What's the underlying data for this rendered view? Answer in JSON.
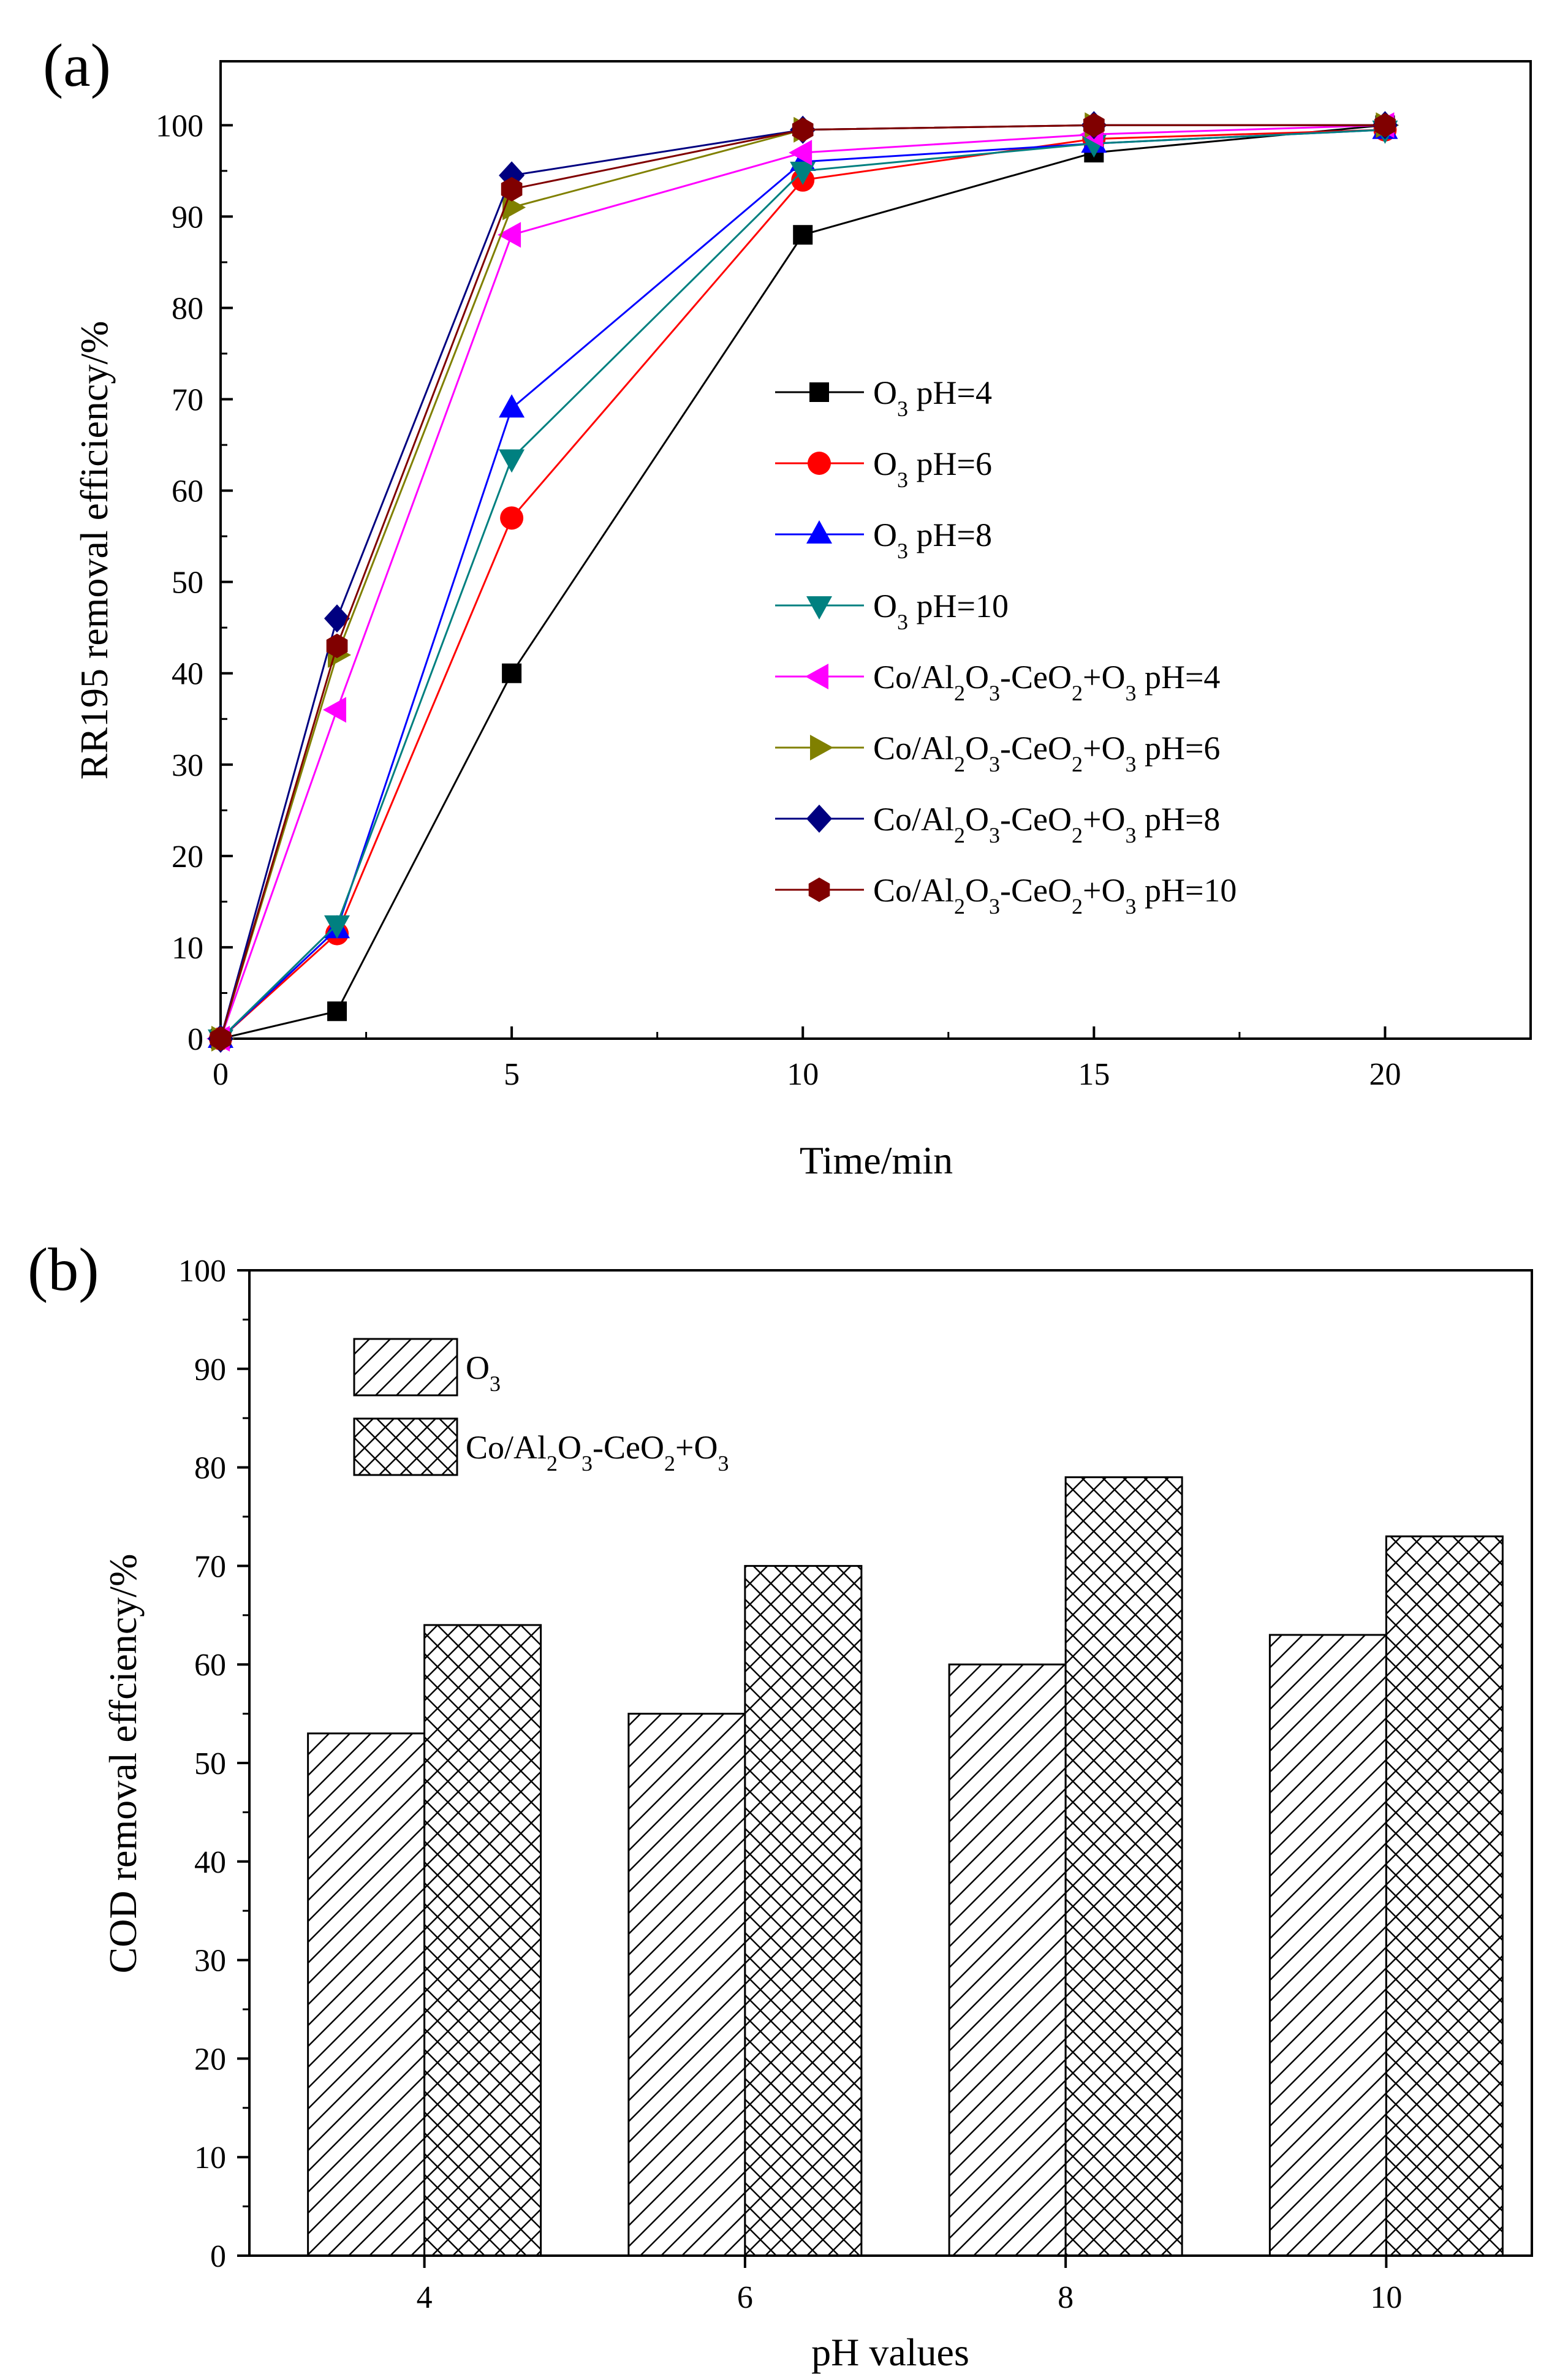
{
  "panel_a": {
    "label": "(a)",
    "legend": [
      {
        "prefix": "O",
        "sub1": "3",
        "mid": "",
        "sub2": "",
        "mid2": "",
        "sub3": "",
        "rest": " pH=4"
      },
      {
        "prefix": "O",
        "sub1": "3",
        "mid": "",
        "sub2": "",
        "mid2": "",
        "sub3": "",
        "rest": " pH=6"
      },
      {
        "prefix": "O",
        "sub1": "3",
        "mid": "",
        "sub2": "",
        "mid2": "",
        "sub3": "",
        "rest": " pH=8"
      },
      {
        "prefix": "O",
        "sub1": "3",
        "mid": "",
        "sub2": "",
        "mid2": "",
        "sub3": "",
        "rest": " pH=10"
      },
      {
        "prefix": "Co/Al",
        "sub1": "2",
        "mid": "O",
        "sub2": "3",
        "mid2": "-CeO",
        "sub3": "2",
        "mid3": "+O",
        "sub4": "3",
        "rest": " pH=4"
      },
      {
        "prefix": "Co/Al",
        "sub1": "2",
        "mid": "O",
        "sub2": "3",
        "mid2": "-CeO",
        "sub3": "2",
        "mid3": "+O",
        "sub4": "3",
        "rest": " pH=6"
      },
      {
        "prefix": "Co/Al",
        "sub1": "2",
        "mid": "O",
        "sub2": "3",
        "mid2": "-CeO",
        "sub3": "2",
        "mid3": "+O",
        "sub4": "3",
        "rest": " pH=8"
      },
      {
        "prefix": "Co/Al",
        "sub1": "2",
        "mid": "O",
        "sub2": "3",
        "mid2": "-CeO",
        "sub3": "2",
        "mid3": "+O",
        "sub4": "3",
        "rest": " pH=10"
      }
    ]
  },
  "panel_b": {
    "label": "(b)",
    "legend": [
      {
        "prefix": "O",
        "sub1": "3",
        "rest": ""
      },
      {
        "prefix": "Co/Al",
        "sub1": "2",
        "mid": "O",
        "sub2": "3",
        "mid2": "-CeO",
        "sub3": "2",
        "mid3": "+O",
        "sub4": "3",
        "rest": ""
      }
    ]
  },
  "chart_data": [
    {
      "type": "line",
      "xlabel": "Time/min",
      "ylabel": "RR195 removal efficiency/%",
      "xlim": [
        0,
        22.5
      ],
      "ylim": [
        0,
        107
      ],
      "xticks": [
        0,
        5,
        10,
        15,
        20
      ],
      "yticks": [
        0,
        10,
        20,
        30,
        40,
        50,
        60,
        70,
        80,
        90,
        100
      ],
      "x": [
        0,
        2,
        5,
        10,
        15,
        20
      ],
      "legend_position": "center-right",
      "series": [
        {
          "name": "O3 pH=4",
          "color": "#000000",
          "marker": "square",
          "values": [
            0,
            3,
            40,
            88,
            97,
            100
          ]
        },
        {
          "name": "O3 pH=6",
          "color": "#ff0000",
          "marker": "circle",
          "values": [
            0,
            11.5,
            57,
            94,
            98.5,
            99.5
          ]
        },
        {
          "name": "O3 pH=8",
          "color": "#0000ff",
          "marker": "triangle-up",
          "values": [
            0,
            12,
            69,
            96,
            98,
            99.5
          ]
        },
        {
          "name": "O3 pH=10",
          "color": "#008080",
          "marker": "triangle-down",
          "values": [
            0,
            12.5,
            63.5,
            95,
            98,
            99.5
          ]
        },
        {
          "name": "Co/Al2O3-CeO2+O3 pH=4",
          "color": "#ff00ff",
          "marker": "triangle-left",
          "values": [
            0,
            36,
            88,
            97,
            99,
            100
          ]
        },
        {
          "name": "Co/Al2O3-CeO2+O3 pH=6",
          "color": "#808000",
          "marker": "triangle-right",
          "values": [
            0,
            42,
            91,
            99.5,
            100,
            100
          ]
        },
        {
          "name": "Co/Al2O3-CeO2+O3 pH=8",
          "color": "#000080",
          "marker": "diamond",
          "values": [
            0,
            46,
            94.5,
            99.5,
            100,
            100
          ]
        },
        {
          "name": "Co/Al2O3-CeO2+O3 pH=10",
          "color": "#800000",
          "marker": "hexagon",
          "values": [
            0,
            43,
            93,
            99.5,
            100,
            100
          ]
        }
      ]
    },
    {
      "type": "bar",
      "xlabel": "pH values",
      "ylabel": "COD removal effciency/%",
      "ylim": [
        0,
        100
      ],
      "yticks": [
        0,
        10,
        20,
        30,
        40,
        50,
        60,
        70,
        80,
        90,
        100
      ],
      "categories": [
        "4",
        "6",
        "8",
        "10"
      ],
      "legend_position": "top-left",
      "series": [
        {
          "name": "O3",
          "pattern": "diagonal-hatch",
          "values": [
            53,
            55,
            60,
            63
          ]
        },
        {
          "name": "Co/Al2O3-CeO2+O3",
          "pattern": "cross-hatch",
          "values": [
            64,
            70,
            79,
            73
          ]
        }
      ]
    }
  ]
}
